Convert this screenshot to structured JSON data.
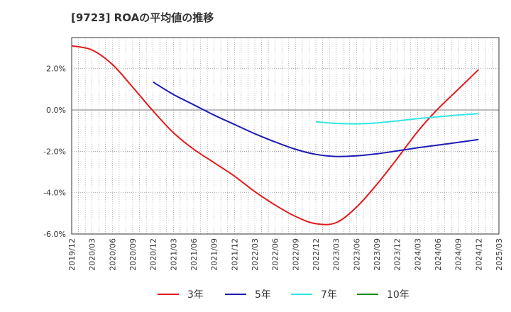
{
  "chart_data": {
    "type": "line",
    "title": "[9723]  ROAの平均値の推移",
    "xlabel": "",
    "ylabel": "",
    "x_categories": [
      "2019/12",
      "2020/03",
      "2020/06",
      "2020/09",
      "2020/12",
      "2021/03",
      "2021/06",
      "2021/09",
      "2021/12",
      "2022/03",
      "2022/06",
      "2022/09",
      "2022/12",
      "2023/03",
      "2023/06",
      "2023/09",
      "2023/12",
      "2024/03",
      "2024/06",
      "2024/09",
      "2024/12",
      "2025/03"
    ],
    "ylim": [
      -6.0,
      3.5
    ],
    "y_ticks": [
      2.0,
      0.0,
      -2.0,
      -4.0,
      -6.0
    ],
    "y_tick_labels": [
      "2.0%",
      "0.0%",
      "-2.0%",
      "-4.0%",
      "-6.0%"
    ],
    "grid": true,
    "legend_position": "bottom",
    "series": [
      {
        "name": "3年",
        "color": "#e31a1c",
        "x": [
          "2019/12",
          "2020/03",
          "2020/06",
          "2020/09",
          "2020/12",
          "2021/03",
          "2021/06",
          "2021/09",
          "2021/12",
          "2022/03",
          "2022/06",
          "2022/09",
          "2022/12",
          "2023/03",
          "2023/06",
          "2023/09",
          "2023/12",
          "2024/03",
          "2024/06",
          "2024/09",
          "2024/12"
        ],
        "values": [
          3.1,
          2.9,
          2.2,
          1.1,
          -0.05,
          -1.1,
          -1.9,
          -2.55,
          -3.2,
          -3.95,
          -4.6,
          -5.15,
          -5.5,
          -5.45,
          -4.7,
          -3.6,
          -2.35,
          -1.05,
          0.05,
          1.0,
          1.95
        ]
      },
      {
        "name": "5年",
        "color": "#1c1cb4",
        "x": [
          "2020/12",
          "2021/03",
          "2021/06",
          "2021/09",
          "2021/12",
          "2022/03",
          "2022/06",
          "2022/09",
          "2022/12",
          "2023/03",
          "2023/06",
          "2023/09",
          "2023/12",
          "2024/03",
          "2024/06",
          "2024/09",
          "2024/12"
        ],
        "values": [
          1.35,
          0.75,
          0.25,
          -0.25,
          -0.7,
          -1.15,
          -1.55,
          -1.9,
          -2.15,
          -2.25,
          -2.22,
          -2.12,
          -1.98,
          -1.83,
          -1.7,
          -1.57,
          -1.43
        ]
      },
      {
        "name": "7年",
        "color": "#33e5e5",
        "x": [
          "2022/12",
          "2023/03",
          "2023/06",
          "2023/09",
          "2023/12",
          "2024/03",
          "2024/06",
          "2024/09",
          "2024/12"
        ],
        "values": [
          -0.57,
          -0.65,
          -0.67,
          -0.63,
          -0.53,
          -0.42,
          -0.33,
          -0.25,
          -0.18
        ]
      },
      {
        "name": "10年",
        "color": "#1a8c1a",
        "x": [],
        "values": []
      }
    ]
  }
}
